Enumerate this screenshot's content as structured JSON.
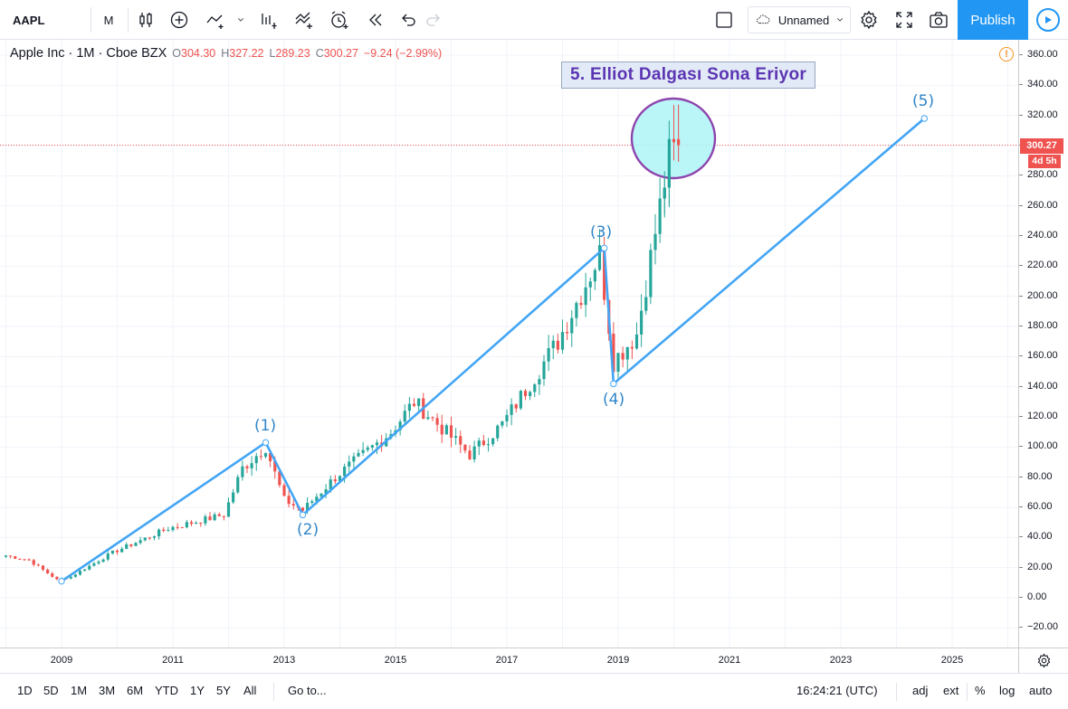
{
  "toolbar": {
    "symbol": "AAPL",
    "interval": "M",
    "layout_name": "Unnamed",
    "publish_label": "Publish"
  },
  "legend": {
    "title": "Apple Inc · 1M · Cboe BZX",
    "open_label": "O",
    "open": "304.30",
    "high_label": "H",
    "high": "327.22",
    "low_label": "L",
    "low": "289.23",
    "close_label": "C",
    "close": "300.27",
    "change": "−9.24 (−2.99%)"
  },
  "annotation": {
    "title": "5. Elliot Dalgası Sona Eriyor",
    "wave_labels": [
      "(1)",
      "(2)",
      "(3)",
      "(4)",
      "(5)"
    ]
  },
  "price_badge": "300.27",
  "time_badge": "4d 5h",
  "price_ticks": [
    "360.00",
    "340.00",
    "320.00",
    "300.00",
    "280.00",
    "260.00",
    "240.00",
    "220.00",
    "200.00",
    "180.00",
    "160.00",
    "140.00",
    "120.00",
    "100.00",
    "80.00",
    "60.00",
    "40.00",
    "20.00",
    "0.00",
    "−20.00"
  ],
  "years": [
    "2009",
    "2011",
    "2013",
    "2015",
    "2017",
    "2019",
    "2021",
    "2023",
    "2025"
  ],
  "bottom": {
    "ranges": [
      "1D",
      "5D",
      "1M",
      "3M",
      "6M",
      "YTD",
      "1Y",
      "5Y",
      "All"
    ],
    "goto": "Go to...",
    "clock": "16:24:21 (UTC)",
    "adj": "adj",
    "ext": "ext",
    "percent": "%",
    "log": "log",
    "auto": "auto"
  },
  "colors": {
    "up": "#26a69a",
    "down": "#ef5350",
    "wave_line": "#42a5f5",
    "circle_stroke": "#8e44ad",
    "circle_fill": "#aef4f7",
    "accent": "#2196f3"
  },
  "chart_data": {
    "type": "candlestick",
    "interval": "1M",
    "ylim": [
      -30,
      370
    ],
    "x_range": [
      "2008-01",
      "2026-02"
    ],
    "wave_points": [
      {
        "label": "(1)",
        "date": "2012-09",
        "price": 103
      },
      {
        "label": "(2)",
        "date": "2013-05",
        "price": 55
      },
      {
        "label": "(3)",
        "date": "2018-10",
        "price": 232
      },
      {
        "label": "(4)",
        "date": "2018-12",
        "price": 142
      },
      {
        "label": "(5)",
        "date": "2024-07",
        "price": 318
      }
    ],
    "wave_start": {
      "date": "2009-01",
      "price": 11
    },
    "last_price": 300.27,
    "anchors": [
      {
        "date": "2008-01",
        "price": 28
      },
      {
        "date": "2008-06",
        "price": 25
      },
      {
        "date": "2008-12",
        "price": 12
      },
      {
        "date": "2009-03",
        "price": 14
      },
      {
        "date": "2009-12",
        "price": 30
      },
      {
        "date": "2010-12",
        "price": 46
      },
      {
        "date": "2011-12",
        "price": 55
      },
      {
        "date": "2012-04",
        "price": 86
      },
      {
        "date": "2012-09",
        "price": 100
      },
      {
        "date": "2013-01",
        "price": 65
      },
      {
        "date": "2013-05",
        "price": 58
      },
      {
        "date": "2013-12",
        "price": 80
      },
      {
        "date": "2014-12",
        "price": 110
      },
      {
        "date": "2015-05",
        "price": 130
      },
      {
        "date": "2016-05",
        "price": 95
      },
      {
        "date": "2016-12",
        "price": 115
      },
      {
        "date": "2017-12",
        "price": 170
      },
      {
        "date": "2018-09",
        "price": 228
      },
      {
        "date": "2018-12",
        "price": 157
      },
      {
        "date": "2019-05",
        "price": 175
      },
      {
        "date": "2019-12",
        "price": 293
      },
      {
        "date": "2020-02",
        "price": 300
      }
    ]
  }
}
